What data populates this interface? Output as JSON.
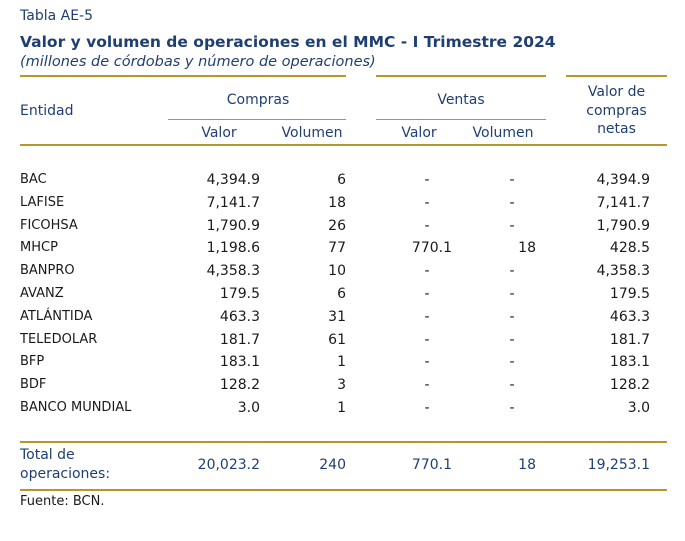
{
  "table_label": "Tabla AE-5",
  "title": "Valor y volumen de operaciones en el MMC - I Trimestre 2024",
  "subtitle": "(millones de córdobas y número de operaciones)",
  "headers": {
    "entity": "Entidad",
    "compras": "Compras",
    "ventas": "Ventas",
    "net_line1": "Valor de",
    "net_line2": "compras",
    "net_line3": "netas",
    "valor": "Valor",
    "volumen": "Volumen"
  },
  "rows": [
    {
      "entity": "BAC",
      "c_valor": "4,394.9",
      "c_vol": "6",
      "v_valor": "-",
      "v_vol": "-",
      "net": "4,394.9"
    },
    {
      "entity": "LAFISE",
      "c_valor": "7,141.7",
      "c_vol": "18",
      "v_valor": "-",
      "v_vol": "-",
      "net": "7,141.7"
    },
    {
      "entity": "FICOHSA",
      "c_valor": "1,790.9",
      "c_vol": "26",
      "v_valor": "-",
      "v_vol": "-",
      "net": "1,790.9"
    },
    {
      "entity": "MHCP",
      "c_valor": "1,198.6",
      "c_vol": "77",
      "v_valor": "770.1",
      "v_vol": "18",
      "net": "428.5"
    },
    {
      "entity": "BANPRO",
      "c_valor": "4,358.3",
      "c_vol": "10",
      "v_valor": "-",
      "v_vol": "-",
      "net": "4,358.3"
    },
    {
      "entity": "AVANZ",
      "c_valor": "179.5",
      "c_vol": "6",
      "v_valor": "-",
      "v_vol": "-",
      "net": "179.5"
    },
    {
      "entity": "ATLÁNTIDA",
      "c_valor": "463.3",
      "c_vol": "31",
      "v_valor": "-",
      "v_vol": "-",
      "net": "463.3"
    },
    {
      "entity": "TELEDOLAR",
      "c_valor": "181.7",
      "c_vol": "61",
      "v_valor": "-",
      "v_vol": "-",
      "net": "181.7"
    },
    {
      "entity": "BFP",
      "c_valor": "183.1",
      "c_vol": "1",
      "v_valor": "-",
      "v_vol": "-",
      "net": "183.1"
    },
    {
      "entity": "BDF",
      "c_valor": "128.2",
      "c_vol": "3",
      "v_valor": "-",
      "v_vol": "-",
      "net": "128.2"
    },
    {
      "entity": "BANCO MUNDIAL",
      "c_valor": "3.0",
      "c_vol": "1",
      "v_valor": "-",
      "v_vol": "-",
      "net": "3.0"
    }
  ],
  "totals": {
    "label_line1": "Total de",
    "label_line2": "operaciones:",
    "c_valor": "20,023.2",
    "c_vol": "240",
    "v_valor": "770.1",
    "v_vol": "18",
    "net": "19,253.1"
  },
  "source": "Fuente: BCN."
}
